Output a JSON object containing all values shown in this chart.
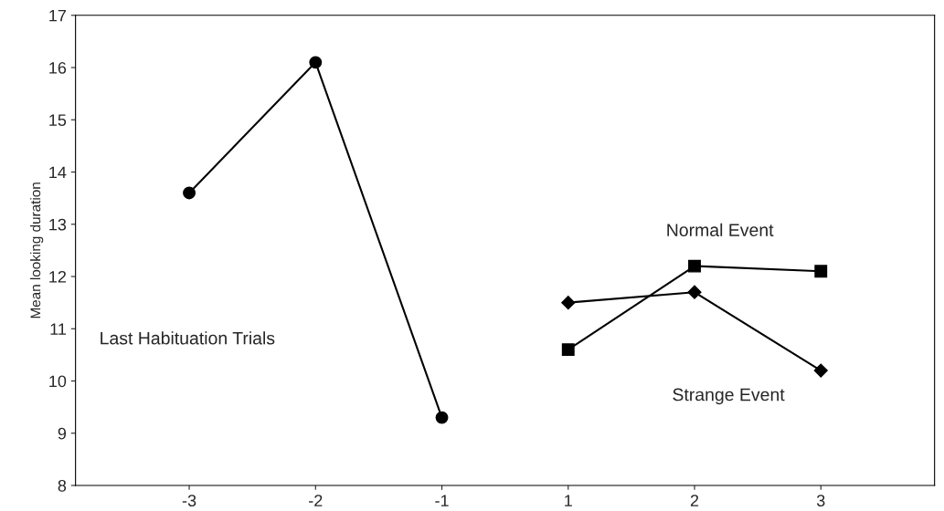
{
  "chart_data": {
    "type": "line",
    "ylabel": "Mean looking duration",
    "categories": [
      "-3",
      "-2",
      "-1",
      "1",
      "2",
      "3"
    ],
    "series": [
      {
        "color": "#000000",
        "marker": "circle",
        "values": [
          13.6,
          16.1,
          9.3,
          null,
          null,
          null
        ]
      },
      {
        "color": "#000000",
        "marker": "square",
        "values": [
          null,
          null,
          null,
          10.6,
          12.2,
          12.1
        ]
      },
      {
        "color": "#000000",
        "marker": "diamond",
        "values": [
          null,
          null,
          null,
          11.5,
          11.7,
          10.2
        ]
      }
    ],
    "ylim": [
      8,
      17
    ],
    "yticks": [
      8,
      9,
      10,
      11,
      12,
      13,
      14,
      15,
      16,
      17
    ],
    "grid": false,
    "legend": false,
    "annotations": [
      "Last Habituation Trials",
      "Normal Event",
      "Strange Event"
    ]
  }
}
